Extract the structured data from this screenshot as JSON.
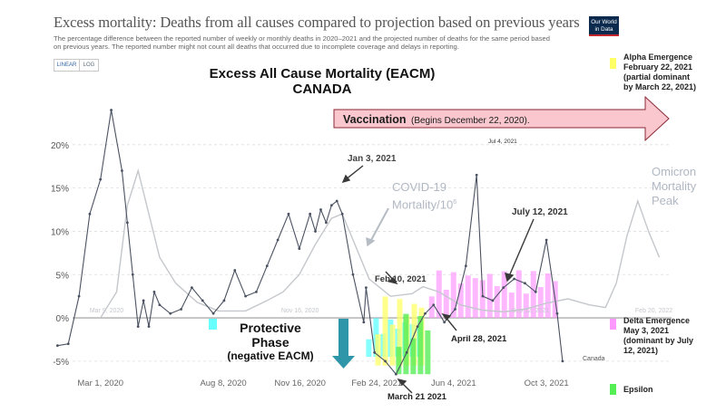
{
  "header": {
    "title": "Excess mortality: Deaths from all causes compared to projection based on previous years",
    "subtitle_lines": [
      "The percentage difference between the reported number of weekly or monthly deaths in 2020–2021 and the projected number of deaths for the same period based",
      "on previous years. The reported number might not count all deaths that occurred due to incomplete coverage and delays in reporting."
    ],
    "logo_lines": [
      "Our World",
      "in Data"
    ],
    "toggle": {
      "linear": "LINEAR",
      "log": "LOG"
    }
  },
  "overlay": {
    "main_title": "Excess All Cause Mortality (EACM)",
    "main_subtitle": "CANADA",
    "vaccination": {
      "label": "Vaccination",
      "note": "(Begins December  22, 2020)."
    },
    "covid_label": {
      "line1": "COVID-19",
      "line2": "Mortality/10",
      "superscript": "6"
    },
    "omicron_label": [
      "Omicron",
      "Mortality",
      "Peak"
    ],
    "protective": {
      "line1": "Protective",
      "line2": "Phase",
      "line3": "(negative EACM)"
    },
    "canada_label": "Canada",
    "colors": {
      "excess_line": "#4a5160",
      "covid_line": "#c4c7cc",
      "vaccination_arrow": "#f9c7cd",
      "protective_arrow": "#2e96a8",
      "alpha": "#ffff66",
      "delta": "#ff99ff",
      "epsilon": "#55ee55",
      "protective_fill": "#66ffff"
    },
    "annotations": [
      {
        "id": "jan3",
        "text": "Jan 3, 2021"
      },
      {
        "id": "feb10",
        "text": "Feb 10, 2021"
      },
      {
        "id": "jul4",
        "text": "Jul 4, 2021"
      },
      {
        "id": "jul12",
        "text": "July 12, 2021"
      },
      {
        "id": "apr28",
        "text": "April 28, 2021"
      },
      {
        "id": "mar21",
        "text": "March 21 2021"
      }
    ],
    "legend": [
      {
        "id": "alpha",
        "color": "#ffff66",
        "lines": [
          "Alpha Emergence",
          "February 22, 2021",
          "(partial dominant",
          "by March 22, 2021)"
        ]
      },
      {
        "id": "delta",
        "color": "#ff99ff",
        "lines": [
          "Delta Emergence",
          "May 3, 2021",
          "(dominant by July",
          "12, 2021)"
        ]
      },
      {
        "id": "epsilon",
        "color": "#55ee55",
        "lines": [
          "Epsilon"
        ]
      }
    ]
  },
  "chart_data": [
    {
      "type": "line",
      "series": [
        {
          "name": "Canada",
          "x": [
            "2020-01-05",
            "2020-01-19",
            "2020-02-02",
            "2020-02-16",
            "2020-03-01",
            "2020-03-15",
            "2020-03-29",
            "2020-04-05",
            "2020-04-12",
            "2020-04-19",
            "2020-04-26",
            "2020-05-03",
            "2020-05-10",
            "2020-05-17",
            "2020-05-31",
            "2020-06-14",
            "2020-06-28",
            "2020-07-12",
            "2020-07-26",
            "2020-08-09",
            "2020-08-23",
            "2020-09-06",
            "2020-09-20",
            "2020-10-04",
            "2020-10-18",
            "2020-11-01",
            "2020-11-15",
            "2020-11-29",
            "2020-12-06",
            "2020-12-13",
            "2020-12-20",
            "2020-12-27",
            "2021-01-03",
            "2021-01-10",
            "2021-01-24",
            "2021-02-07",
            "2021-02-10",
            "2021-02-21",
            "2021-03-07",
            "2021-03-21",
            "2021-04-04",
            "2021-04-18",
            "2021-04-28",
            "2021-05-09",
            "2021-05-23",
            "2021-06-06",
            "2021-06-20",
            "2021-07-04",
            "2021-07-12",
            "2021-07-25",
            "2021-08-08",
            "2021-08-22",
            "2021-09-05",
            "2021-09-19",
            "2021-10-03",
            "2021-10-17",
            "2021-10-24"
          ],
          "y": [
            -3.2,
            -3.0,
            2.5,
            12.0,
            16.0,
            24.0,
            17.0,
            11.0,
            5.0,
            -1.0,
            2.0,
            -1.0,
            3.0,
            1.5,
            0.5,
            1.0,
            3.5,
            2.0,
            0.5,
            2.0,
            5.5,
            2.5,
            3.0,
            6.0,
            9.0,
            12.0,
            8.0,
            12.0,
            10.0,
            12.5,
            11.0,
            13.0,
            13.5,
            12.0,
            5.0,
            -0.5,
            3.5,
            -4.0,
            -5.0,
            -6.5,
            -4.0,
            -1.0,
            0.5,
            1.5,
            -0.5,
            1.0,
            6.0,
            16.5,
            2.5,
            2.0,
            3.5,
            4.5,
            4.0,
            3.0,
            9.0,
            0.5,
            -5.0
          ]
        },
        {
          "name": "COVID-19 Mortality/10^6",
          "x": [
            "2020-03-01",
            "2020-03-22",
            "2020-04-05",
            "2020-04-19",
            "2020-05-03",
            "2020-05-17",
            "2020-06-07",
            "2020-07-05",
            "2020-08-02",
            "2020-09-06",
            "2020-10-04",
            "2020-10-25",
            "2020-11-15",
            "2020-12-06",
            "2020-12-27",
            "2021-01-10",
            "2021-01-24",
            "2021-02-14",
            "2021-03-14",
            "2021-04-11",
            "2021-04-25",
            "2021-05-16",
            "2021-06-13",
            "2021-07-11",
            "2021-08-08",
            "2021-09-05",
            "2021-10-03",
            "2021-10-31",
            "2021-11-28",
            "2021-12-19",
            "2022-01-02",
            "2022-01-16",
            "2022-01-30",
            "2022-02-13",
            "2022-02-27"
          ],
          "y": [
            0.0,
            3.0,
            13.0,
            17.0,
            12.0,
            7.0,
            4.0,
            1.8,
            0.8,
            0.8,
            2.0,
            3.0,
            5.0,
            8.5,
            11.5,
            12.0,
            9.0,
            4.5,
            2.5,
            2.8,
            3.6,
            3.0,
            1.5,
            0.9,
            0.7,
            1.0,
            1.7,
            2.2,
            1.5,
            1.2,
            4.0,
            9.5,
            13.5,
            10.0,
            7.0
          ]
        }
      ],
      "title": "Excess All Cause Mortality (EACM)",
      "subtitle": "CANADA",
      "x_tick_labels": [
        "Mar 1, 2020",
        "Aug 8, 2020",
        "Nov 16, 2020",
        "Feb 24, 2021",
        "Jun 4, 2021",
        "Oct 3, 2021"
      ],
      "faint_x_tick_labels": [
        "Mar 9, 2020",
        "Nov 16, 2020",
        "Sep 12, 2021",
        "Feb 20, 2022"
      ],
      "y_tick_labels": [
        "20%",
        "15%",
        "10%",
        "5%",
        "0%",
        "-5%"
      ],
      "y_ticks": [
        20,
        15,
        10,
        5,
        0,
        -5
      ],
      "ylim": [
        -7,
        25
      ],
      "xlim": [
        "2020-01-01",
        "2022-03-15"
      ],
      "grid": "horizontal dashed",
      "legend": "top-right",
      "variant_dates": {
        "protective_phase": [
          "2021-02-10",
          "2021-04-20"
        ],
        "alpha": [
          "2021-02-22",
          "2021-04-28"
        ],
        "epsilon": [
          "2021-03-21",
          "2021-05-05"
        ],
        "delta": [
          "2021-05-03",
          "2021-10-17"
        ]
      }
    }
  ]
}
